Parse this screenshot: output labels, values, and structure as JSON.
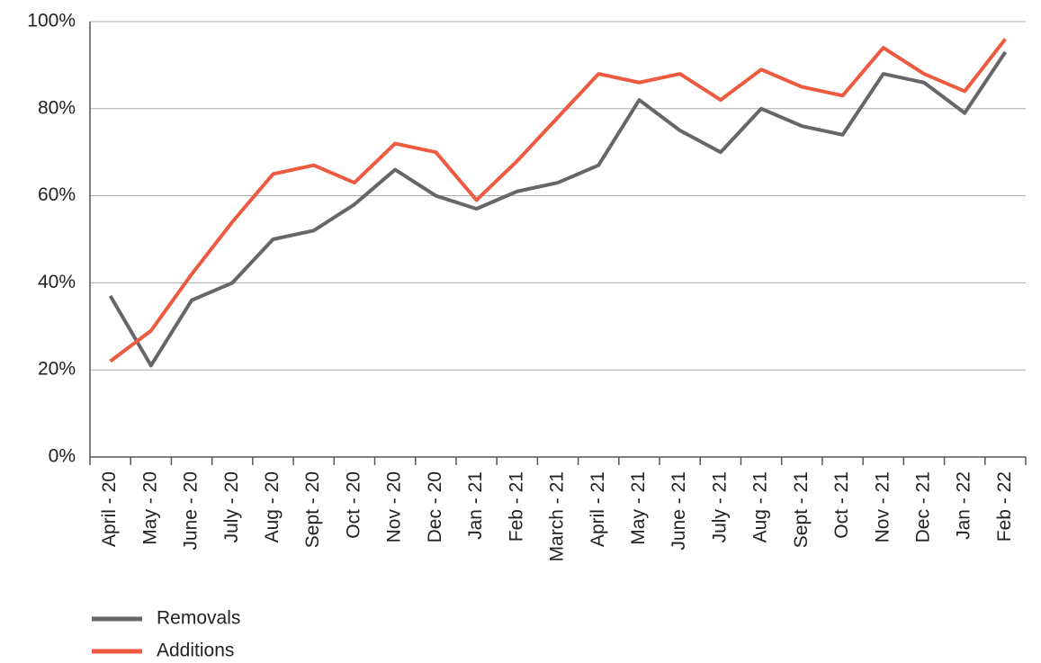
{
  "chart_data": {
    "type": "line",
    "categories": [
      "April - 20",
      "May - 20",
      "June - 20",
      "July - 20",
      "Aug - 20",
      "Sept - 20",
      "Oct - 20",
      "Nov - 20",
      "Dec - 20",
      "Jan - 21",
      "Feb - 21",
      "March - 21",
      "April - 21",
      "May - 21",
      "June - 21",
      "July - 21",
      "Aug - 21",
      "Sept - 21",
      "Oct - 21",
      "Nov - 21",
      "Dec - 21",
      "Jan - 22",
      "Feb - 22"
    ],
    "series": [
      {
        "name": "Removals",
        "color": "#666666",
        "values": [
          37,
          21,
          36,
          40,
          50,
          52,
          58,
          66,
          60,
          57,
          61,
          63,
          67,
          82,
          75,
          70,
          80,
          76,
          74,
          88,
          86,
          79,
          93
        ]
      },
      {
        "name": "Additions",
        "color": "#ee5a3f",
        "values": [
          22,
          29,
          42,
          54,
          65,
          67,
          63,
          72,
          70,
          59,
          68,
          78,
          88,
          86,
          88,
          82,
          89,
          85,
          83,
          94,
          88,
          84,
          96
        ]
      }
    ],
    "ylim": [
      0,
      100
    ],
    "yticks": [
      {
        "value": 0,
        "label": "0%"
      },
      {
        "value": 20,
        "label": "20%"
      },
      {
        "value": 40,
        "label": "40%"
      },
      {
        "value": 60,
        "label": "60%"
      },
      {
        "value": 80,
        "label": "80%"
      },
      {
        "value": 100,
        "label": "100%"
      }
    ],
    "grid": true,
    "legend": "bottom-left"
  }
}
